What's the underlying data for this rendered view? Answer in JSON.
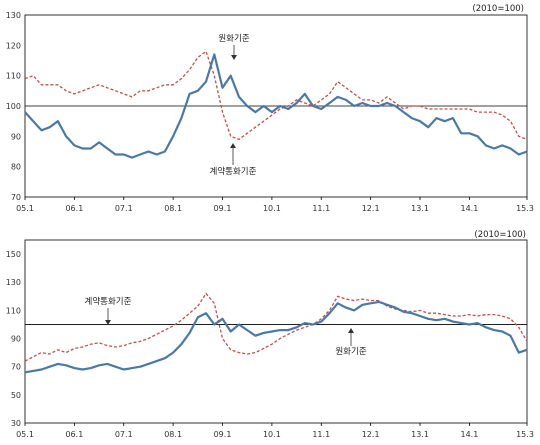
{
  "chart_data": [
    {
      "type": "line",
      "unit_label": "(2010=100)",
      "x_ticks": [
        "05.1",
        "06.1",
        "07.1",
        "08.1",
        "09.1",
        "10.1",
        "11.1",
        "12.1",
        "13.1",
        "14.1",
        "15.3"
      ],
      "ylim": [
        70,
        130
      ],
      "y_ticks": [
        70,
        80,
        90,
        100,
        110,
        120,
        130
      ],
      "reference_line": 100,
      "x_start": "2005-01",
      "x_end": "2015-03",
      "series": [
        {
          "label": "원화기준",
          "color": "#4a79a6",
          "style": "solid",
          "x": [
            "2005-01",
            "2005-03",
            "2005-05",
            "2005-07",
            "2005-09",
            "2005-11",
            "2006-01",
            "2006-03",
            "2006-05",
            "2006-07",
            "2006-09",
            "2006-11",
            "2007-01",
            "2007-03",
            "2007-05",
            "2007-07",
            "2007-09",
            "2007-11",
            "2008-01",
            "2008-03",
            "2008-05",
            "2008-07",
            "2008-09",
            "2008-11",
            "2009-01",
            "2009-03",
            "2009-05",
            "2009-07",
            "2009-09",
            "2009-11",
            "2010-01",
            "2010-03",
            "2010-05",
            "2010-07",
            "2010-09",
            "2010-11",
            "2011-01",
            "2011-03",
            "2011-05",
            "2011-07",
            "2011-09",
            "2011-11",
            "2012-01",
            "2012-03",
            "2012-05",
            "2012-07",
            "2012-09",
            "2012-11",
            "2013-01",
            "2013-03",
            "2013-05",
            "2013-07",
            "2013-09",
            "2013-11",
            "2014-01",
            "2014-03",
            "2014-05",
            "2014-07",
            "2014-09",
            "2014-11",
            "2015-01",
            "2015-03"
          ],
          "values": [
            98,
            95,
            92,
            93,
            95,
            90,
            87,
            86,
            86,
            88,
            86,
            84,
            84,
            83,
            84,
            85,
            84,
            85,
            90,
            96,
            104,
            105,
            108,
            117,
            106,
            110,
            103,
            100,
            98,
            100,
            98,
            100,
            99,
            101,
            104,
            100,
            99,
            101,
            103,
            102,
            100,
            101,
            100,
            100,
            101,
            100,
            98,
            96,
            95,
            93,
            96,
            95,
            96,
            91,
            91,
            90,
            87,
            86,
            87,
            86,
            84,
            85
          ]
        },
        {
          "label": "계약통화기준",
          "color": "#c0504d",
          "style": "dashed",
          "x": [
            "2005-01",
            "2005-03",
            "2005-05",
            "2005-07",
            "2005-09",
            "2005-11",
            "2006-01",
            "2006-03",
            "2006-05",
            "2006-07",
            "2006-09",
            "2006-11",
            "2007-01",
            "2007-03",
            "2007-05",
            "2007-07",
            "2007-09",
            "2007-11",
            "2008-01",
            "2008-03",
            "2008-05",
            "2008-07",
            "2008-09",
            "2008-11",
            "2009-01",
            "2009-03",
            "2009-05",
            "2009-07",
            "2009-09",
            "2009-11",
            "2010-01",
            "2010-03",
            "2010-05",
            "2010-07",
            "2010-09",
            "2010-11",
            "2011-01",
            "2011-03",
            "2011-05",
            "2011-07",
            "2011-09",
            "2011-11",
            "2012-01",
            "2012-03",
            "2012-05",
            "2012-07",
            "2012-09",
            "2012-11",
            "2013-01",
            "2013-03",
            "2013-05",
            "2013-07",
            "2013-09",
            "2013-11",
            "2014-01",
            "2014-03",
            "2014-05",
            "2014-07",
            "2014-09",
            "2014-11",
            "2015-01",
            "2015-03"
          ],
          "values": [
            109,
            110,
            107,
            107,
            107,
            105,
            104,
            105,
            106,
            107,
            106,
            105,
            104,
            103,
            105,
            105,
            106,
            107,
            107,
            109,
            112,
            116,
            118,
            110,
            98,
            90,
            89,
            91,
            93,
            95,
            97,
            99,
            100,
            102,
            101,
            100,
            102,
            104,
            108,
            106,
            104,
            102,
            102,
            101,
            103,
            101,
            99,
            100,
            100,
            99,
            99,
            99,
            99,
            99,
            99,
            98,
            98,
            98,
            97,
            95,
            90,
            89
          ]
        }
      ],
      "annotations": [
        {
          "text": "원화기준",
          "series": 0
        },
        {
          "text": "계약통화기준",
          "series": 1
        }
      ]
    },
    {
      "type": "line",
      "unit_label": "(2010=100)",
      "x_ticks": [
        "05.1",
        "06.1",
        "07.1",
        "08.1",
        "09.1",
        "10.1",
        "11.1",
        "12.1",
        "13.1",
        "14.1",
        "15.3"
      ],
      "ylim": [
        30,
        160
      ],
      "y_ticks": [
        30,
        50,
        70,
        90,
        110,
        130,
        150
      ],
      "reference_line": 100,
      "x_start": "2005-01",
      "x_end": "2015-03",
      "series": [
        {
          "label": "원화기준",
          "color": "#4a79a6",
          "style": "solid",
          "x": [
            "2005-01",
            "2005-03",
            "2005-05",
            "2005-07",
            "2005-09",
            "2005-11",
            "2006-01",
            "2006-03",
            "2006-05",
            "2006-07",
            "2006-09",
            "2006-11",
            "2007-01",
            "2007-03",
            "2007-05",
            "2007-07",
            "2007-09",
            "2007-11",
            "2008-01",
            "2008-03",
            "2008-05",
            "2008-07",
            "2008-09",
            "2008-11",
            "2009-01",
            "2009-03",
            "2009-05",
            "2009-07",
            "2009-09",
            "2009-11",
            "2010-01",
            "2010-03",
            "2010-05",
            "2010-07",
            "2010-09",
            "2010-11",
            "2011-01",
            "2011-03",
            "2011-05",
            "2011-07",
            "2011-09",
            "2011-11",
            "2012-01",
            "2012-03",
            "2012-05",
            "2012-07",
            "2012-09",
            "2012-11",
            "2013-01",
            "2013-03",
            "2013-05",
            "2013-07",
            "2013-09",
            "2013-11",
            "2014-01",
            "2014-03",
            "2014-05",
            "2014-07",
            "2014-09",
            "2014-11",
            "2015-01",
            "2015-03"
          ],
          "values": [
            66,
            67,
            68,
            70,
            72,
            71,
            69,
            68,
            69,
            71,
            72,
            70,
            68,
            69,
            70,
            72,
            74,
            76,
            80,
            86,
            94,
            105,
            108,
            100,
            104,
            95,
            100,
            96,
            92,
            94,
            95,
            96,
            96,
            98,
            101,
            100,
            102,
            108,
            115,
            112,
            110,
            114,
            115,
            116,
            114,
            112,
            109,
            108,
            106,
            104,
            103,
            104,
            102,
            101,
            100,
            101,
            98,
            96,
            95,
            92,
            80,
            82
          ]
        },
        {
          "label": "계약통화기준",
          "color": "#c0504d",
          "style": "dashed",
          "x": [
            "2005-01",
            "2005-03",
            "2005-05",
            "2005-07",
            "2005-09",
            "2005-11",
            "2006-01",
            "2006-03",
            "2006-05",
            "2006-07",
            "2006-09",
            "2006-11",
            "2007-01",
            "2007-03",
            "2007-05",
            "2007-07",
            "2007-09",
            "2007-11",
            "2008-01",
            "2008-03",
            "2008-05",
            "2008-07",
            "2008-09",
            "2008-11",
            "2009-01",
            "2009-03",
            "2009-05",
            "2009-07",
            "2009-09",
            "2009-11",
            "2010-01",
            "2010-03",
            "2010-05",
            "2010-07",
            "2010-09",
            "2010-11",
            "2011-01",
            "2011-03",
            "2011-05",
            "2011-07",
            "2011-09",
            "2011-11",
            "2012-01",
            "2012-03",
            "2012-05",
            "2012-07",
            "2012-09",
            "2012-11",
            "2013-01",
            "2013-03",
            "2013-05",
            "2013-07",
            "2013-09",
            "2013-11",
            "2014-01",
            "2014-03",
            "2014-05",
            "2014-07",
            "2014-09",
            "2014-11",
            "2015-01",
            "2015-03"
          ],
          "values": [
            74,
            77,
            80,
            79,
            82,
            80,
            83,
            84,
            86,
            87,
            85,
            84,
            85,
            87,
            88,
            90,
            93,
            96,
            99,
            103,
            108,
            113,
            122,
            115,
            90,
            82,
            80,
            79,
            80,
            83,
            86,
            90,
            93,
            96,
            98,
            100,
            104,
            110,
            120,
            118,
            117,
            118,
            117,
            117,
            113,
            111,
            110,
            109,
            110,
            108,
            108,
            107,
            106,
            106,
            107,
            106,
            107,
            107,
            106,
            104,
            98,
            88
          ]
        }
      ],
      "annotations": [
        {
          "text": "계약통화기준",
          "series": 1
        },
        {
          "text": "원화기준",
          "series": 0
        }
      ]
    }
  ]
}
